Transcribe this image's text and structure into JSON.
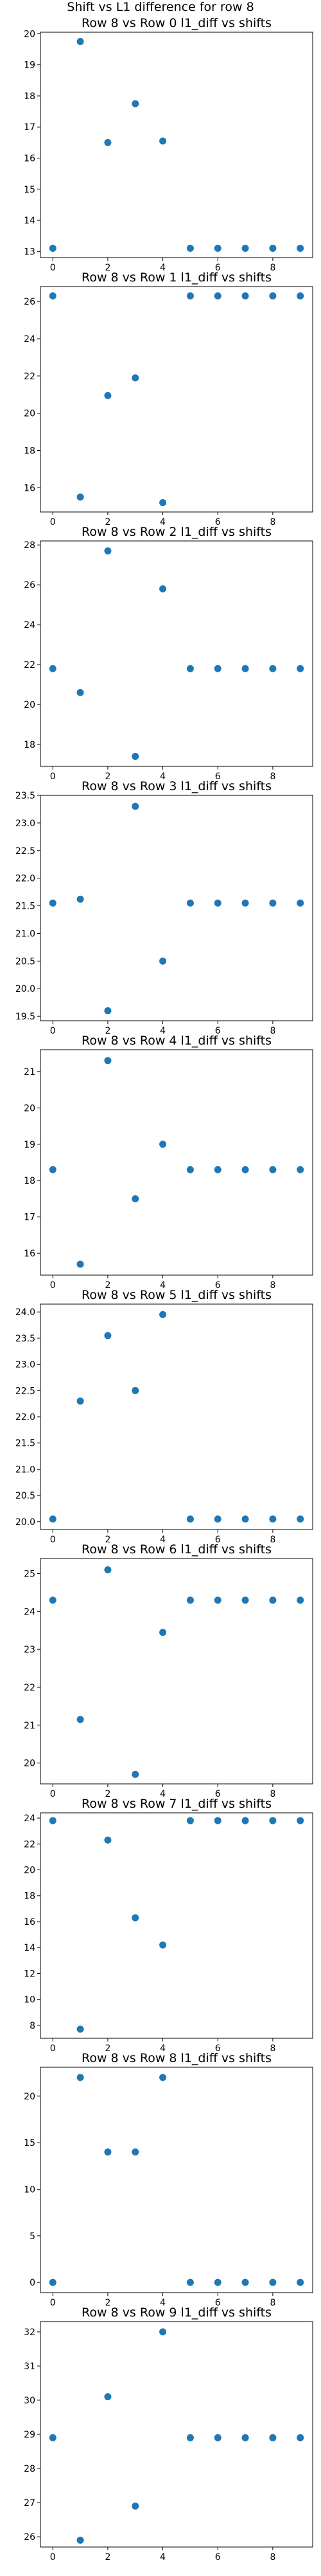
{
  "figure": {
    "suptitle": "Shift vs L1 difference for row 8"
  },
  "style": {
    "point_color": "#1f77b4",
    "axis_color": "#000000",
    "background": "#ffffff"
  },
  "chart_data": [
    {
      "type": "scatter",
      "title": "Row 8 vs Row 0 l1_diff vs shifts",
      "x": [
        0,
        1,
        2,
        3,
        4,
        5,
        6,
        7,
        8,
        9
      ],
      "y": [
        13.1,
        19.75,
        16.5,
        17.75,
        16.55,
        13.1,
        13.1,
        13.1,
        13.1,
        13.1
      ],
      "xlim": [
        -0.45,
        9.45
      ],
      "ylim": [
        12.8,
        20.05
      ],
      "xticks": [
        0,
        2,
        4,
        6,
        8
      ],
      "yticks": [
        13,
        14,
        15,
        16,
        17,
        18,
        19,
        20
      ],
      "grid": false
    },
    {
      "type": "scatter",
      "title": "Row 8 vs Row 1 l1_diff vs shifts",
      "x": [
        0,
        1,
        2,
        3,
        4,
        5,
        6,
        7,
        8,
        9
      ],
      "y": [
        26.3,
        15.5,
        20.95,
        21.9,
        15.2,
        26.3,
        26.3,
        26.3,
        26.3,
        26.3
      ],
      "xlim": [
        -0.45,
        9.45
      ],
      "ylim": [
        14.7,
        26.8
      ],
      "xticks": [
        0,
        2,
        4,
        6,
        8
      ],
      "yticks": [
        16,
        18,
        20,
        22,
        24,
        26
      ],
      "grid": false
    },
    {
      "type": "scatter",
      "title": "Row 8 vs Row 2 l1_diff vs shifts",
      "x": [
        0,
        1,
        2,
        3,
        4,
        5,
        6,
        7,
        8,
        9
      ],
      "y": [
        21.8,
        20.6,
        27.7,
        17.4,
        25.8,
        21.8,
        21.8,
        21.8,
        21.8,
        21.8
      ],
      "xlim": [
        -0.45,
        9.45
      ],
      "ylim": [
        16.9,
        28.2
      ],
      "xticks": [
        0,
        2,
        4,
        6,
        8
      ],
      "yticks": [
        18,
        20,
        22,
        24,
        26,
        28
      ],
      "grid": false
    },
    {
      "type": "scatter",
      "title": "Row 8 vs Row 3 l1_diff vs shifts",
      "x": [
        0,
        1,
        2,
        3,
        4,
        5,
        6,
        7,
        8,
        9
      ],
      "y": [
        21.55,
        21.62,
        19.6,
        23.3,
        20.5,
        21.55,
        21.55,
        21.55,
        21.55,
        21.55
      ],
      "xlim": [
        -0.45,
        9.45
      ],
      "ylim": [
        19.42,
        23.5
      ],
      "xticks": [
        0,
        2,
        4,
        6,
        8
      ],
      "yticks": [
        19.5,
        20.0,
        20.5,
        21.0,
        21.5,
        22.0,
        22.5,
        23.0,
        23.5
      ],
      "grid": false
    },
    {
      "type": "scatter",
      "title": "Row 8 vs Row 4 l1_diff vs shifts",
      "x": [
        0,
        1,
        2,
        3,
        4,
        5,
        6,
        7,
        8,
        9
      ],
      "y": [
        18.3,
        15.7,
        21.3,
        17.5,
        19.0,
        18.3,
        18.3,
        18.3,
        18.3,
        18.3
      ],
      "xlim": [
        -0.45,
        9.45
      ],
      "ylim": [
        15.4,
        21.6
      ],
      "xticks": [
        0,
        2,
        4,
        6,
        8
      ],
      "yticks": [
        16,
        17,
        18,
        19,
        20,
        21
      ],
      "grid": false
    },
    {
      "type": "scatter",
      "title": "Row 8 vs Row 5 l1_diff vs shifts",
      "x": [
        0,
        1,
        2,
        3,
        4,
        5,
        6,
        7,
        8,
        9
      ],
      "y": [
        20.05,
        22.3,
        23.55,
        22.5,
        23.95,
        20.05,
        20.05,
        20.05,
        20.05,
        20.05
      ],
      "xlim": [
        -0.45,
        9.45
      ],
      "ylim": [
        19.85,
        24.15
      ],
      "xticks": [
        0,
        2,
        4,
        6,
        8
      ],
      "yticks": [
        20.0,
        20.5,
        21.0,
        21.5,
        22.0,
        22.5,
        23.0,
        23.5,
        24.0
      ],
      "grid": false
    },
    {
      "type": "scatter",
      "title": "Row 8 vs Row 6 l1_diff vs shifts",
      "x": [
        0,
        1,
        2,
        3,
        4,
        5,
        6,
        7,
        8,
        9
      ],
      "y": [
        24.3,
        21.15,
        25.1,
        19.7,
        23.45,
        24.3,
        24.3,
        24.3,
        24.3,
        24.3
      ],
      "xlim": [
        -0.45,
        9.45
      ],
      "ylim": [
        19.45,
        25.4
      ],
      "xticks": [
        0,
        2,
        4,
        6,
        8
      ],
      "yticks": [
        20,
        21,
        22,
        23,
        24,
        25
      ],
      "grid": false
    },
    {
      "type": "scatter",
      "title": "Row 8 vs Row 7 l1_diff vs shifts",
      "x": [
        0,
        1,
        2,
        3,
        4,
        5,
        6,
        7,
        8,
        9
      ],
      "y": [
        23.8,
        7.7,
        22.3,
        16.3,
        14.2,
        23.8,
        23.8,
        23.8,
        23.8,
        23.8
      ],
      "xlim": [
        -0.45,
        9.45
      ],
      "ylim": [
        7.0,
        24.4
      ],
      "xticks": [
        0,
        2,
        4,
        6,
        8
      ],
      "yticks": [
        8,
        10,
        12,
        14,
        16,
        18,
        20,
        22,
        24
      ],
      "grid": false
    },
    {
      "type": "scatter",
      "title": "Row 8 vs Row 8 l1_diff vs shifts",
      "x": [
        0,
        1,
        2,
        3,
        4,
        5,
        6,
        7,
        8,
        9
      ],
      "y": [
        0,
        22,
        14,
        14,
        22,
        0,
        0,
        0,
        0,
        0
      ],
      "xlim": [
        -0.45,
        9.45
      ],
      "ylim": [
        -1.1,
        23.1
      ],
      "xticks": [
        0,
        2,
        4,
        6,
        8
      ],
      "yticks": [
        0,
        5,
        10,
        15,
        20
      ],
      "grid": false
    },
    {
      "type": "scatter",
      "title": "Row 8 vs Row 9 l1_diff vs shifts",
      "x": [
        0,
        1,
        2,
        3,
        4,
        5,
        6,
        7,
        8,
        9
      ],
      "y": [
        28.9,
        25.9,
        30.1,
        26.9,
        32.0,
        28.9,
        28.9,
        28.9,
        28.9,
        28.9
      ],
      "xlim": [
        -0.45,
        9.45
      ],
      "ylim": [
        25.7,
        32.3
      ],
      "xticks": [
        0,
        2,
        4,
        6,
        8
      ],
      "yticks": [
        26,
        27,
        28,
        29,
        30,
        31,
        32
      ],
      "grid": false
    }
  ]
}
